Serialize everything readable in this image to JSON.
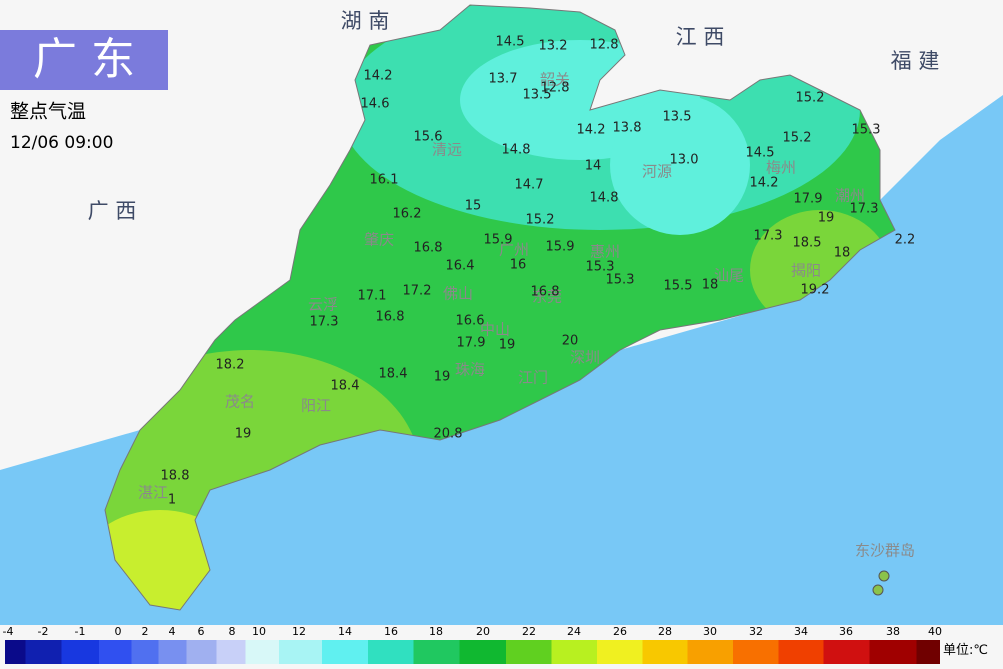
{
  "header": {
    "title": "广 东",
    "subtitle": "整点气温",
    "time": "12/06 09:00"
  },
  "regions": [
    "湖 南",
    "江 西",
    "福 建",
    "广 西"
  ],
  "cities": [
    "韶关",
    "清远",
    "河源",
    "梅州",
    "潮州",
    "揭阳",
    "汕尾",
    "肇庆",
    "广州",
    "惠州",
    "佛山",
    "东莞",
    "云浮",
    "中山",
    "深圳",
    "江门",
    "珠海",
    "阳江",
    "茂名",
    "湛江",
    "东沙群岛"
  ],
  "readings": [
    "14.5",
    "13.2",
    "12.8",
    "14.2",
    "13.7",
    "12.8",
    "13.5",
    "14.6",
    "14.2",
    "13.8",
    "13.5",
    "15.2",
    "15.3",
    "15.6",
    "14.8",
    "14",
    "13.0",
    "14.5",
    "15.2",
    "14.2",
    "16.1",
    "14.7",
    "14.8",
    "17.9",
    "17.3",
    "16.2",
    "15",
    "15.2",
    "19",
    "15.9",
    "15.9",
    "16.8",
    "17.3",
    "18.5",
    "18",
    "2.2",
    "16.4",
    "16",
    "15.3",
    "15.3",
    "15.5",
    "18",
    "19.2",
    "17.1",
    "17.2",
    "16.8",
    "17.3",
    "16.8",
    "16.6",
    "17.9",
    "19",
    "20",
    "18.2",
    "18.4",
    "18.4",
    "19",
    "20.8",
    "19",
    "18.8",
    "1"
  ],
  "legend": {
    "ticks": [
      "-4",
      "-2",
      "-1",
      "0",
      "2",
      "4",
      "6",
      "8",
      "10",
      "12",
      "14",
      "16",
      "18",
      "20",
      "22",
      "24",
      "26",
      "28",
      "30",
      "32",
      "34",
      "36",
      "38",
      "40"
    ],
    "unit": "单位:℃"
  }
}
